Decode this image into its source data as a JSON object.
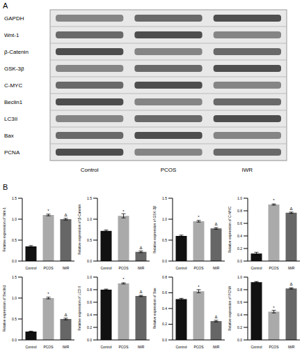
{
  "panels": [
    "A",
    "B"
  ],
  "blot": {
    "proteins": [
      "GAPDH",
      "Wnt-1",
      "β-Catenin",
      "GSK-3β",
      "C-MYC",
      "Beclin1",
      "LC3II",
      "Bax",
      "PCNA"
    ],
    "lanes": [
      "Control",
      "PCOS",
      "IWR"
    ]
  },
  "chart_data": [
    {
      "type": "bar",
      "ylabel": "Relative expression of Wnt-1",
      "categories": [
        "Control",
        "PCOS",
        "IWR"
      ],
      "values": [
        0.35,
        1.1,
        1.0
      ],
      "errors": [
        0.02,
        0.02,
        0.02
      ],
      "marks": [
        null,
        "*",
        "Δ"
      ],
      "colors": [
        "#111111",
        "#aaaaaa",
        "#666666"
      ],
      "ylim": [
        0,
        1.5
      ],
      "yticks": [
        {
          "value": 0,
          "label": "0.0"
        },
        0.5,
        {
          "value": 1,
          "label": "1.0"
        },
        1.5
      ]
    },
    {
      "type": "bar",
      "ylabel": "Relative expression of β-Catenin",
      "categories": [
        "Control",
        "PCOS",
        "IWR"
      ],
      "values": [
        0.72,
        1.08,
        0.22
      ],
      "errors": [
        0.02,
        0.05,
        0.02
      ],
      "marks": [
        null,
        "*",
        "Δ"
      ],
      "colors": [
        "#111111",
        "#aaaaaa",
        "#666666"
      ],
      "ylim": [
        0,
        1.5
      ],
      "yticks": [
        {
          "value": 0,
          "label": "0.0"
        },
        0.5,
        {
          "value": 1,
          "label": "1.0"
        },
        1.5
      ]
    },
    {
      "type": "bar",
      "ylabel": "Relative expression of GSK-3β",
      "categories": [
        "Control",
        "PCOS",
        "IWR"
      ],
      "values": [
        0.6,
        0.95,
        0.78
      ],
      "errors": [
        0.02,
        0.02,
        0.02
      ],
      "marks": [
        null,
        "*",
        "Δ"
      ],
      "colors": [
        "#111111",
        "#aaaaaa",
        "#666666"
      ],
      "ylim": [
        0,
        1.5
      ],
      "yticks": [
        {
          "value": 0,
          "label": "0.0"
        },
        0.5,
        {
          "value": 1,
          "label": "1.0"
        },
        1.5
      ]
    },
    {
      "type": "bar",
      "ylabel": "Relative expression of C-MYC",
      "categories": [
        "Control",
        "PCOS",
        "IWR"
      ],
      "values": [
        0.12,
        0.9,
        0.77
      ],
      "errors": [
        0.02,
        0.01,
        0.01
      ],
      "marks": [
        null,
        "*",
        "Δ"
      ],
      "colors": [
        "#111111",
        "#aaaaaa",
        "#666666"
      ],
      "ylim": [
        0,
        1
      ],
      "yticks": [
        {
          "value": 0,
          "label": "0.0"
        },
        0.2,
        0.4,
        0.6,
        0.8,
        {
          "value": 1,
          "label": "1.0"
        }
      ]
    },
    {
      "type": "bar",
      "ylabel": "Relative expression of Beclin1",
      "categories": [
        "Control",
        "PCOS",
        "IWR"
      ],
      "values": [
        0.2,
        1.0,
        0.5
      ],
      "errors": [
        0.01,
        0.02,
        0.02
      ],
      "marks": [
        null,
        "*",
        "Δ"
      ],
      "colors": [
        "#111111",
        "#aaaaaa",
        "#666666"
      ],
      "ylim": [
        0,
        1.5
      ],
      "yticks": [
        {
          "value": 0,
          "label": "0.0"
        },
        0.5,
        {
          "value": 1,
          "label": "1.0"
        },
        1.5
      ]
    },
    {
      "type": "bar",
      "ylabel": "Relative expression of LC3 II",
      "categories": [
        "Control",
        "PCOS",
        "IWR"
      ],
      "values": [
        0.8,
        0.9,
        0.7
      ],
      "errors": [
        0.01,
        0.01,
        0.01
      ],
      "marks": [
        null,
        "*",
        "Δ"
      ],
      "colors": [
        "#111111",
        "#aaaaaa",
        "#666666"
      ],
      "ylim": [
        0,
        1
      ],
      "yticks": [
        {
          "value": 0,
          "label": "0.0"
        },
        0.2,
        0.4,
        0.6,
        0.8,
        {
          "value": 1,
          "label": "1.0"
        }
      ]
    },
    {
      "type": "bar",
      "ylabel": "Relative expression of Bax",
      "categories": [
        "Control",
        "PCOS",
        "IWR"
      ],
      "values": [
        0.52,
        0.62,
        0.24
      ],
      "errors": [
        0.01,
        0.02,
        0.01
      ],
      "marks": [
        null,
        "*",
        "Δ"
      ],
      "colors": [
        "#111111",
        "#aaaaaa",
        "#666666"
      ],
      "ylim": [
        0,
        0.8
      ],
      "yticks": [
        {
          "value": 0,
          "label": "0.0"
        },
        0.2,
        0.4,
        0.6,
        0.8
      ]
    },
    {
      "type": "bar",
      "ylabel": "Relative expression of PCNA",
      "categories": [
        "Control",
        "PCOS",
        "IWR"
      ],
      "values": [
        0.92,
        0.45,
        0.82
      ],
      "errors": [
        0.01,
        0.02,
        0.01
      ],
      "marks": [
        null,
        "*",
        "Δ"
      ],
      "colors": [
        "#111111",
        "#aaaaaa",
        "#666666"
      ],
      "ylim": [
        0,
        1
      ],
      "yticks": [
        {
          "value": 0,
          "label": "0.0"
        },
        0.2,
        0.4,
        0.6,
        0.8,
        {
          "value": 1,
          "label": "1.0"
        }
      ]
    }
  ]
}
